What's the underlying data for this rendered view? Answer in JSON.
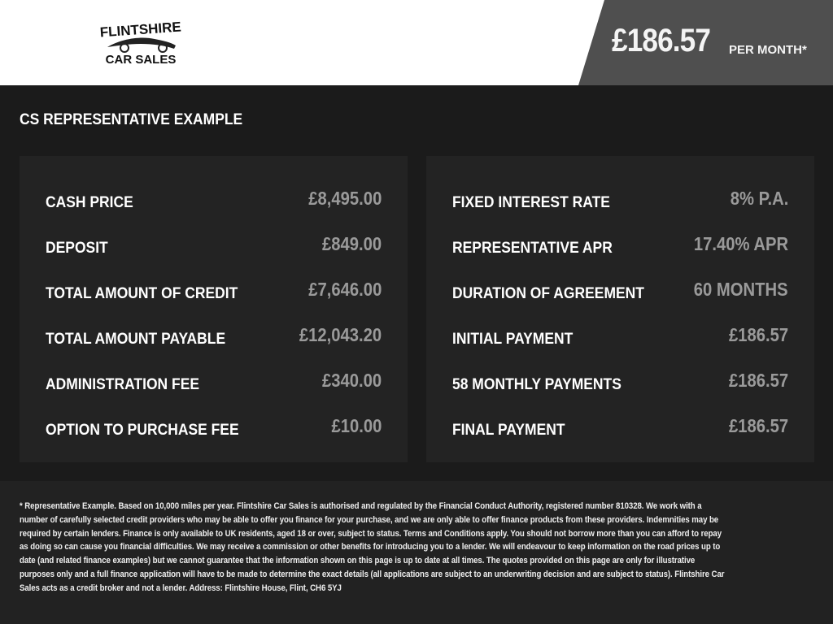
{
  "header": {
    "logo": {
      "line1": "FLINTSHIRE",
      "line2": "CAR SALES"
    },
    "price": "£186.57",
    "price_suffix": "PER MONTH*"
  },
  "section_title": "CS REPRESENTATIVE EXAMPLE",
  "left_panel": [
    {
      "label": "CASH PRICE",
      "value": "£8,495.00"
    },
    {
      "label": "DEPOSIT",
      "value": "£849.00"
    },
    {
      "label": "TOTAL AMOUNT OF CREDIT",
      "value": "£7,646.00"
    },
    {
      "label": "TOTAL AMOUNT PAYABLE",
      "value": "£12,043.20"
    },
    {
      "label": "ADMINISTRATION FEE",
      "value": "£340.00"
    },
    {
      "label": "OPTION TO PURCHASE FEE",
      "value": "£10.00"
    }
  ],
  "right_panel": [
    {
      "label": "FIXED INTEREST RATE",
      "value": "8% P.A."
    },
    {
      "label": "REPRESENTATIVE APR",
      "value": "17.40% APR"
    },
    {
      "label": "DURATION OF AGREEMENT",
      "value": "60 MONTHS"
    },
    {
      "label": "INITIAL PAYMENT",
      "value": "£186.57"
    },
    {
      "label": "58 MONTHLY PAYMENTS",
      "value": "£186.57"
    },
    {
      "label": "FINAL PAYMENT",
      "value": "£186.57"
    }
  ],
  "disclaimer": "* Representative Example. Based on 10,000 miles per year. Flintshire Car Sales is authorised and regulated by the Financial Conduct Authority, registered number 810328. We work with a number of carefully selected credit providers who may be able to offer you finance for your purchase, and we are only able to offer finance products from these providers. Indemnities may be required by certain lenders. Finance is only available to UK residents, aged 18 or over, subject to status. Terms and Conditions apply. You should not borrow more than you can afford to repay as doing so can cause you financial difficulties. We may receive a commission or other benefits for introducing you to a lender. We will endeavour to keep information on the road prices up to date (and related finance examples) but we cannot guarantee that the information shown on this page is up to date at all times. The quotes provided on this page are only for illustrative purposes only and a full finance application will have to be made to determine the exact details (all applications are subject to an underwriting decision and are subject to status). Flintshire Car Sales acts as a credit broker and not a lender. Address: Flintshire House, Flint, CH6 5YJ"
}
